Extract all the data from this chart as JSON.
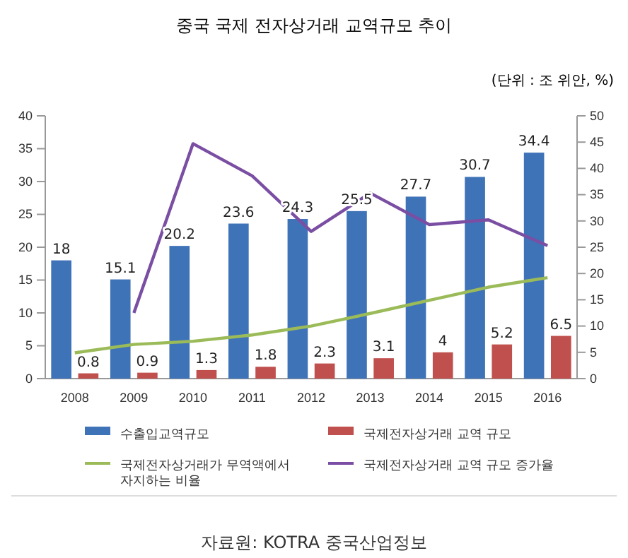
{
  "chart_data": {
    "type": "bar",
    "title": "중국 국제 전자상거래 교역규모 추이",
    "subtitle": "(단위 : 조 위안, %)",
    "categories": [
      "2008",
      "2009",
      "2010",
      "2011",
      "2012",
      "2013",
      "2014",
      "2015",
      "2016"
    ],
    "series": [
      {
        "name": "수출입교역규모",
        "color": "#3f73b8",
        "values": [
          18,
          15.1,
          20.2,
          23.6,
          24.3,
          25.5,
          27.7,
          30.7,
          34.4
        ],
        "value_labels": [
          "18",
          "15.1",
          "20.2",
          "23.6",
          "24.3",
          "25.5",
          "27.7",
          "30.7",
          "34.4"
        ]
      },
      {
        "name": "국제전자상거래 교역 규모",
        "color": "#c0504d",
        "values": [
          0.8,
          0.9,
          1.3,
          1.8,
          2.3,
          3.1,
          4,
          5.2,
          6.5
        ],
        "value_labels": [
          "0.8",
          "0.9",
          "1.3",
          "1.8",
          "2.3",
          "3.1",
          "4",
          "5.2",
          "6.5"
        ]
      },
      {
        "name": "국제전자상거래가 무역액에서 자지하는 비율",
        "type": "line",
        "axis": "y2",
        "color": "#9bbb59",
        "values": [
          4.9,
          6.5,
          7.1,
          8.3,
          10,
          12.4,
          14.9,
          17.4,
          19.2
        ]
      },
      {
        "name": "국제전자상거래 교역 규모 증가율",
        "type": "line",
        "axis": "y2",
        "color": "#7a4ea3",
        "values": [
          null,
          12.5,
          44.7,
          38.6,
          28,
          35.3,
          29.3,
          30.2,
          25.3
        ]
      }
    ],
    "ylim": [
      0,
      40
    ],
    "yticks": [
      0,
      5,
      10,
      15,
      20,
      25,
      30,
      35,
      40
    ],
    "y2lim": [
      0,
      50
    ],
    "y2ticks": [
      0,
      5,
      10,
      15,
      20,
      25,
      30,
      35,
      40,
      45,
      50
    ],
    "legend": "bottom",
    "grid": false,
    "marker": "none",
    "line_style": "solid",
    "annotations": [
      "자료원: KOTRA 중국산업정보"
    ]
  }
}
